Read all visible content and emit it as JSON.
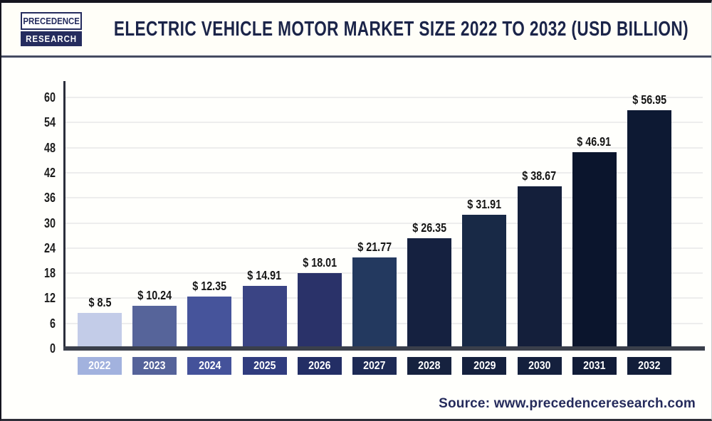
{
  "header": {
    "logo_line1": "PRECEDENCE",
    "logo_line2": "RESEARCH",
    "title": "ELECTRIC VEHICLE MOTOR MARKET SIZE 2022 TO 2032 (USD BILLION)"
  },
  "chart_data": {
    "type": "bar",
    "title": "Electric Vehicle Motor Market Size 2022 to 2032 (USD Billion)",
    "categories": [
      "2022",
      "2023",
      "2024",
      "2025",
      "2026",
      "2027",
      "2028",
      "2029",
      "2030",
      "2031",
      "2032"
    ],
    "values": [
      8.5,
      10.24,
      12.35,
      14.91,
      18.01,
      21.77,
      26.35,
      31.91,
      38.67,
      46.91,
      56.95
    ],
    "value_labels": [
      "$ 8.5",
      "$ 10.24",
      "$ 12.35",
      "$ 14.91",
      "$ 18.01",
      "$ 21.77",
      "$ 26.35",
      "$ 31.91",
      "$ 38.67",
      "$ 46.91",
      "$ 56.95"
    ],
    "xlabel": "",
    "ylabel": "",
    "ylim": [
      0,
      60
    ],
    "yticks": [
      0,
      6,
      12,
      18,
      24,
      30,
      36,
      42,
      48,
      54,
      60
    ],
    "grid": "horizontal",
    "legend": "none",
    "bar_colors": [
      "#C3CCE8",
      "#56649A",
      "#46549B",
      "#3A4484",
      "#2A3269",
      "#23395F",
      "#152140",
      "#182946",
      "#141F3B",
      "#0B152D",
      "#0D1933"
    ],
    "year_box_colors": [
      "#A2B2DE",
      "#55639A",
      "#44529A",
      "#303C7E",
      "#232E65",
      "#1D2A55",
      "#16223F",
      "#15213E",
      "#14203D",
      "#111C38",
      "#121E3A"
    ]
  },
  "footer": {
    "source": "Source: www.precedenceresearch.com"
  },
  "colors": {
    "title_color": "#1B2449",
    "divider_color": "#454B61",
    "axis_color": "#3A3F4B",
    "grid_color": "#EDEDED",
    "source_color": "#252B5C",
    "logo_navy": "#252C5E"
  }
}
